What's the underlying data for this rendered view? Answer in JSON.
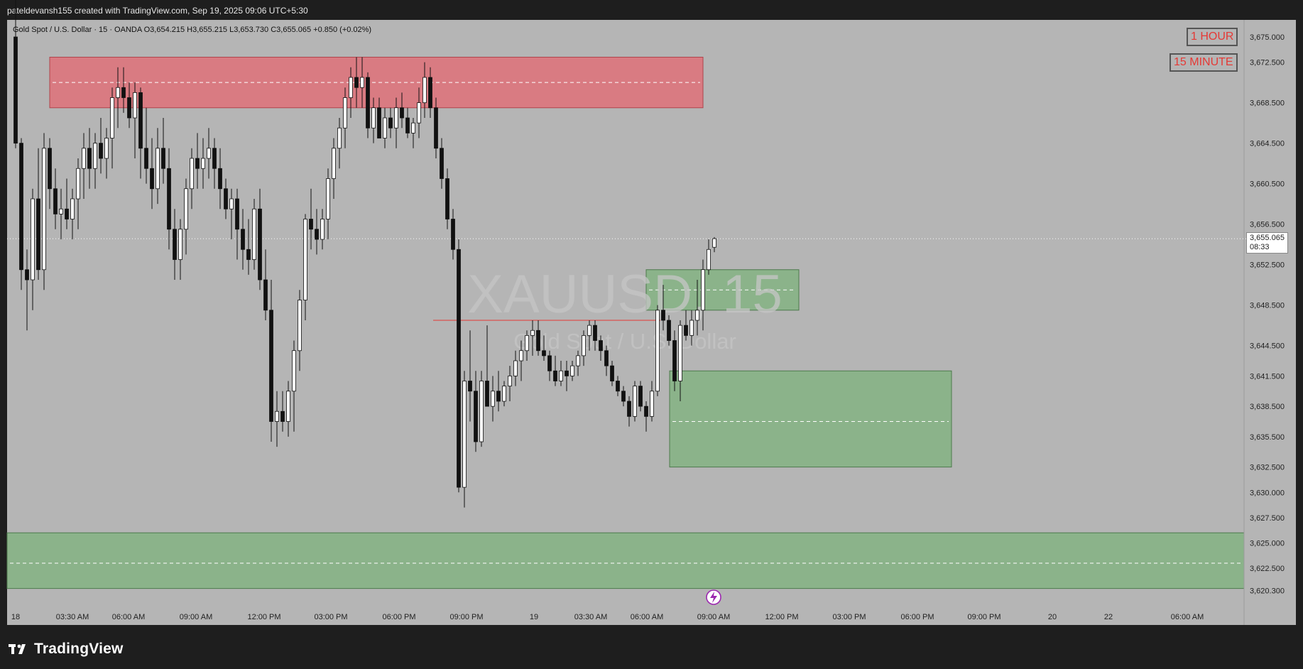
{
  "header": {
    "attribution": "pateldevansh155 created with TradingView.com, Sep 19, 2025 09:06 UTC+5:30"
  },
  "symbol_line": "Gold Spot / U.S. Dollar · 15 · OANDA  O3,654.215  H3,655.215  L3,653.730  C3,655.065  +0.850 (+0.02%)",
  "watermark": {
    "ticker": "XAUUSD, 15",
    "name": "Gold Spot / U.S. Dollar"
  },
  "labels": {
    "tf1": "1 HOUR",
    "tf2": "15 MINUTE"
  },
  "price_tag": {
    "price": "3,655.065",
    "countdown": "08:33"
  },
  "footer": {
    "brand": "TradingView"
  },
  "colors": {
    "background": "#b5b5b5",
    "frame": "#1e1e1e",
    "supply_zone": "#d97b82",
    "demand_zone": "#8bb38a",
    "candle_up": "#ffffff",
    "candle_down": "#111111",
    "accent_red": "#e53935"
  },
  "chart_data": {
    "type": "candlestick",
    "symbol": "XAUUSD",
    "timeframe": "15",
    "exchange": "OANDA",
    "ohlc_last": {
      "open": 3654.215,
      "high": 3655.215,
      "low": 3653.73,
      "close": 3655.065,
      "change": 0.85,
      "change_pct": 0.02
    },
    "y_axis": {
      "ylim": [
        3619.0,
        3676.0
      ],
      "ticks": [
        3675.0,
        3672.5,
        3668.5,
        3664.5,
        3660.5,
        3656.5,
        3652.5,
        3648.5,
        3644.5,
        3641.5,
        3638.5,
        3635.5,
        3632.5,
        3630.0,
        3627.5,
        3625.0,
        3622.5,
        3620.3
      ],
      "tick_labels": [
        "3,675.000",
        "3,672.500",
        "3,668.500",
        "3,664.500",
        "3,660.500",
        "3,656.500",
        "3,652.500",
        "3,648.500",
        "3,644.500",
        "3,641.500",
        "3,638.500",
        "3,635.500",
        "3,632.500",
        "3,630.000",
        "3,627.500",
        "3,625.000",
        "3,622.500",
        "3,620.300"
      ]
    },
    "x_axis": {
      "tick_labels": [
        "18",
        "03:30 AM",
        "06:00 AM",
        "09:00 AM",
        "12:00 PM",
        "03:00 PM",
        "06:00 PM",
        "09:00 PM",
        "19",
        "03:30 AM",
        "06:00 AM",
        "09:00 AM",
        "12:00 PM",
        "03:00 PM",
        "06:00 PM",
        "09:00 PM",
        "20",
        "22",
        "06:00 AM"
      ]
    },
    "candles": [
      [
        3675.0,
        3680.0,
        3664.0,
        3664.5
      ],
      [
        3664.5,
        3665.0,
        3650.0,
        3652.0
      ],
      [
        3652.0,
        3654.0,
        3646.0,
        3651.0
      ],
      [
        3651.0,
        3660.0,
        3648.0,
        3659.0
      ],
      [
        3659.0,
        3664.0,
        3651.0,
        3652.0
      ],
      [
        3652.0,
        3665.5,
        3650.0,
        3664.0
      ],
      [
        3664.0,
        3665.0,
        3658.0,
        3660.0
      ],
      [
        3660.0,
        3662.0,
        3656.0,
        3657.5
      ],
      [
        3657.5,
        3660.0,
        3655.0,
        3658.0
      ],
      [
        3658.0,
        3661.0,
        3656.0,
        3657.0
      ],
      [
        3657.0,
        3660.0,
        3655.0,
        3659.0
      ],
      [
        3659.0,
        3663.0,
        3656.0,
        3662.0
      ],
      [
        3662.0,
        3665.5,
        3659.0,
        3664.0
      ],
      [
        3664.0,
        3666.0,
        3660.0,
        3662.0
      ],
      [
        3662.0,
        3665.5,
        3660.0,
        3664.5
      ],
      [
        3664.5,
        3667.0,
        3661.5,
        3663.0
      ],
      [
        3663.0,
        3666.0,
        3661.0,
        3665.0
      ],
      [
        3665.0,
        3670.0,
        3662.0,
        3669.0
      ],
      [
        3669.0,
        3672.0,
        3666.0,
        3670.0
      ],
      [
        3670.0,
        3672.0,
        3667.5,
        3669.0
      ],
      [
        3669.0,
        3670.5,
        3666.0,
        3667.0
      ],
      [
        3667.0,
        3670.5,
        3663.0,
        3669.5
      ],
      [
        3669.5,
        3670.0,
        3661.0,
        3664.0
      ],
      [
        3664.0,
        3668.0,
        3660.5,
        3662.0
      ],
      [
        3662.0,
        3665.0,
        3658.0,
        3660.0
      ],
      [
        3660.0,
        3666.0,
        3658.5,
        3664.0
      ],
      [
        3664.0,
        3667.0,
        3660.5,
        3662.0
      ],
      [
        3662.0,
        3664.0,
        3654.0,
        3656.0
      ],
      [
        3656.0,
        3658.0,
        3651.0,
        3653.0
      ],
      [
        3653.0,
        3657.0,
        3651.0,
        3656.0
      ],
      [
        3656.0,
        3661.0,
        3653.5,
        3660.0
      ],
      [
        3660.0,
        3664.0,
        3658.0,
        3663.0
      ],
      [
        3663.0,
        3665.5,
        3660.0,
        3662.0
      ],
      [
        3662.0,
        3665.0,
        3660.0,
        3663.0
      ],
      [
        3663.0,
        3666.0,
        3661.0,
        3664.0
      ],
      [
        3664.0,
        3665.0,
        3660.0,
        3662.0
      ],
      [
        3662.0,
        3664.0,
        3658.0,
        3660.0
      ],
      [
        3660.0,
        3661.0,
        3657.0,
        3658.0
      ],
      [
        3658.0,
        3660.0,
        3655.0,
        3659.0
      ],
      [
        3659.0,
        3660.0,
        3653.0,
        3656.0
      ],
      [
        3656.0,
        3658.0,
        3652.0,
        3654.0
      ],
      [
        3654.0,
        3657.0,
        3651.5,
        3653.0
      ],
      [
        3653.0,
        3659.0,
        3652.0,
        3658.0
      ],
      [
        3658.0,
        3660.0,
        3650.0,
        3651.0
      ],
      [
        3651.0,
        3654.0,
        3647.0,
        3648.0
      ],
      [
        3648.0,
        3651.0,
        3635.0,
        3637.0
      ],
      [
        3637.0,
        3640.0,
        3634.5,
        3638.0
      ],
      [
        3638.0,
        3640.0,
        3636.0,
        3637.0
      ],
      [
        3637.0,
        3641.0,
        3635.5,
        3640.0
      ],
      [
        3640.0,
        3645.0,
        3636.0,
        3644.0
      ],
      [
        3644.0,
        3650.0,
        3642.0,
        3649.0
      ],
      [
        3649.0,
        3657.5,
        3647.0,
        3657.0
      ],
      [
        3657.0,
        3660.0,
        3654.0,
        3656.0
      ],
      [
        3656.0,
        3658.0,
        3653.5,
        3655.0
      ],
      [
        3655.0,
        3658.0,
        3654.0,
        3657.0
      ],
      [
        3657.0,
        3662.0,
        3655.0,
        3661.0
      ],
      [
        3661.0,
        3665.0,
        3659.0,
        3664.0
      ],
      [
        3664.0,
        3667.0,
        3662.0,
        3666.0
      ],
      [
        3666.0,
        3670.0,
        3664.0,
        3669.0
      ],
      [
        3669.0,
        3672.0,
        3667.0,
        3671.0
      ],
      [
        3671.0,
        3673.0,
        3668.0,
        3670.0
      ],
      [
        3670.0,
        3673.0,
        3668.0,
        3671.0
      ],
      [
        3671.0,
        3671.5,
        3665.0,
        3666.0
      ],
      [
        3666.0,
        3669.0,
        3664.5,
        3668.0
      ],
      [
        3668.0,
        3669.0,
        3665.0,
        3665.0
      ],
      [
        3665.0,
        3668.0,
        3664.0,
        3667.0
      ],
      [
        3667.0,
        3668.0,
        3665.0,
        3666.0
      ],
      [
        3666.0,
        3669.0,
        3664.0,
        3668.0
      ],
      [
        3668.0,
        3669.5,
        3666.0,
        3667.0
      ],
      [
        3667.0,
        3668.0,
        3665.0,
        3665.5
      ],
      [
        3665.5,
        3667.0,
        3664.0,
        3666.5
      ],
      [
        3666.5,
        3670.0,
        3665.0,
        3668.5
      ],
      [
        3668.5,
        3672.5,
        3667.0,
        3671.0
      ],
      [
        3671.0,
        3672.0,
        3667.0,
        3668.0
      ],
      [
        3668.0,
        3669.0,
        3663.0,
        3664.0
      ],
      [
        3664.0,
        3665.0,
        3660.0,
        3661.0
      ],
      [
        3661.0,
        3662.0,
        3656.0,
        3657.0
      ],
      [
        3657.0,
        3658.0,
        3653.0,
        3654.0
      ],
      [
        3654.0,
        3655.0,
        3630.0,
        3630.5
      ],
      [
        3630.5,
        3642.0,
        3628.5,
        3641.0
      ],
      [
        3641.0,
        3646.0,
        3637.0,
        3640.0
      ],
      [
        3640.0,
        3642.0,
        3634.0,
        3635.0
      ],
      [
        3635.0,
        3642.0,
        3634.5,
        3641.0
      ],
      [
        3641.0,
        3646.5,
        3639.0,
        3638.5
      ],
      [
        3638.5,
        3641.5,
        3637.0,
        3640.0
      ],
      [
        3640.0,
        3642.0,
        3638.0,
        3639.0
      ],
      [
        3639.0,
        3641.0,
        3638.5,
        3640.5
      ],
      [
        3640.5,
        3642.5,
        3639.0,
        3641.5
      ],
      [
        3641.5,
        3644.0,
        3640.5,
        3643.0
      ],
      [
        3643.0,
        3645.0,
        3641.0,
        3644.0
      ],
      [
        3644.0,
        3646.0,
        3643.0,
        3645.5
      ],
      [
        3645.5,
        3647.0,
        3643.5,
        3646.0
      ],
      [
        3646.0,
        3647.0,
        3643.5,
        3644.0
      ],
      [
        3644.0,
        3645.5,
        3643.0,
        3643.5
      ],
      [
        3643.5,
        3644.0,
        3641.0,
        3642.0
      ],
      [
        3642.0,
        3643.5,
        3640.5,
        3641.0
      ],
      [
        3641.0,
        3643.0,
        3640.5,
        3642.0
      ],
      [
        3642.0,
        3643.0,
        3640.0,
        3641.5
      ],
      [
        3641.5,
        3643.0,
        3641.0,
        3642.5
      ],
      [
        3642.5,
        3644.0,
        3641.5,
        3643.5
      ],
      [
        3643.5,
        3646.0,
        3642.5,
        3645.5
      ],
      [
        3645.5,
        3647.0,
        3644.0,
        3646.5
      ],
      [
        3646.5,
        3647.0,
        3644.0,
        3645.0
      ],
      [
        3645.0,
        3645.5,
        3643.0,
        3644.0
      ],
      [
        3644.0,
        3644.5,
        3641.5,
        3642.5
      ],
      [
        3642.5,
        3643.0,
        3640.5,
        3641.0
      ],
      [
        3641.0,
        3641.5,
        3639.5,
        3640.0
      ],
      [
        3640.0,
        3640.5,
        3638.5,
        3639.0
      ],
      [
        3639.0,
        3639.5,
        3636.5,
        3637.5
      ],
      [
        3637.5,
        3641.0,
        3637.0,
        3640.5
      ],
      [
        3640.5,
        3641.0,
        3638.0,
        3638.5
      ],
      [
        3638.5,
        3639.0,
        3636.0,
        3637.5
      ],
      [
        3637.5,
        3641.0,
        3637.0,
        3640.0
      ],
      [
        3640.0,
        3648.5,
        3639.5,
        3648.0
      ],
      [
        3648.0,
        3650.5,
        3646.0,
        3647.0
      ],
      [
        3647.0,
        3647.5,
        3644.5,
        3645.0
      ],
      [
        3645.0,
        3646.0,
        3640.0,
        3641.0
      ],
      [
        3641.0,
        3647.0,
        3639.0,
        3646.5
      ],
      [
        3646.5,
        3648.0,
        3645.0,
        3645.5
      ],
      [
        3645.5,
        3648.0,
        3644.5,
        3647.0
      ],
      [
        3647.0,
        3651.0,
        3645.5,
        3648.0
      ],
      [
        3648.0,
        3653.0,
        3646.0,
        3652.0
      ],
      [
        3652.0,
        3655.0,
        3651.5,
        3654.0
      ],
      [
        3654.215,
        3655.215,
        3653.73,
        3655.065
      ]
    ],
    "zones": [
      {
        "kind": "supply",
        "from": 3668.0,
        "to": 3673.0,
        "mid": 3670.5
      },
      {
        "kind": "demand",
        "from": 3648.0,
        "to": 3652.0,
        "mid": 3650.0
      },
      {
        "kind": "demand",
        "from": 3632.5,
        "to": 3642.0,
        "mid": 3637.0
      },
      {
        "kind": "demand",
        "from": 3620.5,
        "to": 3626.0,
        "mid": 3623.0
      }
    ],
    "lines": [
      {
        "kind": "level",
        "price": 3647.0
      },
      {
        "kind": "last_price",
        "price": 3655.065
      }
    ],
    "grid": false
  }
}
